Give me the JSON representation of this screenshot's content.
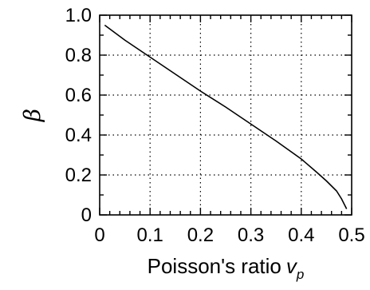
{
  "chart_data": {
    "type": "line",
    "xlabel": "Poisson's ratio",
    "xlabel_symbol": "v",
    "xlabel_subscript": "p",
    "ylabel": "β",
    "xlim": [
      0,
      0.5
    ],
    "ylim": [
      0,
      1.0
    ],
    "x_ticks": [
      0,
      0.1,
      0.2,
      0.3,
      0.4,
      0.5
    ],
    "x_tick_labels": [
      "0",
      "0.1",
      "0.2",
      "0.3",
      "0.4",
      "0.5"
    ],
    "y_ticks": [
      0,
      0.2,
      0.4,
      0.6,
      0.8,
      1.0
    ],
    "y_tick_labels": [
      "0",
      "0.2",
      "0.4",
      "0.6",
      "0.8",
      "1.0"
    ],
    "x_minor_step": 0.02,
    "y_minor_step": 0.1,
    "grid": true,
    "series": [
      {
        "x": [
          0.01,
          0.05,
          0.1,
          0.15,
          0.2,
          0.25,
          0.3,
          0.35,
          0.4,
          0.43,
          0.45,
          0.47,
          0.48,
          0.49
        ],
        "y": [
          0.95,
          0.875,
          0.79,
          0.705,
          0.62,
          0.54,
          0.455,
          0.37,
          0.28,
          0.215,
          0.17,
          0.12,
          0.08,
          0.03
        ]
      }
    ]
  }
}
